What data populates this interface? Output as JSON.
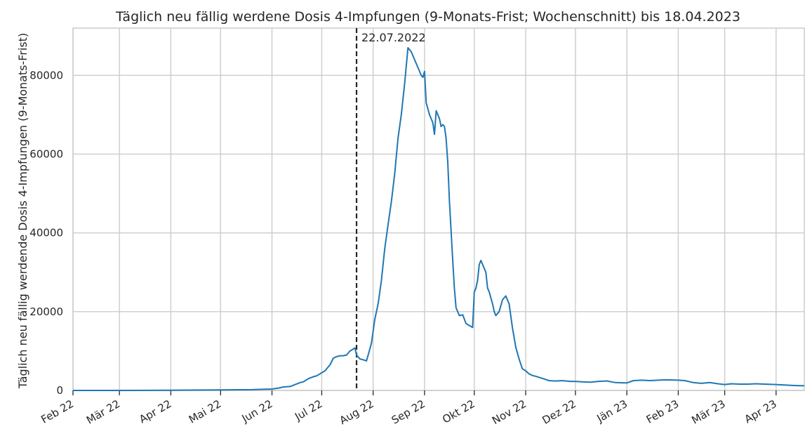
{
  "chart_data": {
    "type": "line",
    "title": "Täglich neu fällig werdene Dosis 4-Impfungen (9-Monats-Frist; Wochenschnitt) bis 18.04.2023",
    "xlabel": "",
    "ylabel": "Täglich neu fällig werdende Dosis 4-Impfungen (9-Monats-Frist)",
    "ylim": [
      0,
      92000
    ],
    "xlim": [
      "2022-02-01",
      "2023-04-18"
    ],
    "grid": true,
    "colors": {
      "line": "#1f77b4",
      "vline": "#262626",
      "grid": "#cccccc",
      "spine": "#cccccc"
    },
    "yticks": [
      {
        "value": 0,
        "label": "0"
      },
      {
        "value": 20000,
        "label": "20000"
      },
      {
        "value": 40000,
        "label": "40000"
      },
      {
        "value": 60000,
        "label": "60000"
      },
      {
        "value": 80000,
        "label": "80000"
      }
    ],
    "xticks": [
      {
        "date": "2022-02-01",
        "label": "Feb 22"
      },
      {
        "date": "2022-03-01",
        "label": "Mär 22"
      },
      {
        "date": "2022-04-01",
        "label": "Apr 22"
      },
      {
        "date": "2022-05-01",
        "label": "Mai 22"
      },
      {
        "date": "2022-06-01",
        "label": "Jun 22"
      },
      {
        "date": "2022-07-01",
        "label": "Jul 22"
      },
      {
        "date": "2022-08-01",
        "label": "Aug 22"
      },
      {
        "date": "2022-09-01",
        "label": "Sep 22"
      },
      {
        "date": "2022-10-01",
        "label": "Okt 22"
      },
      {
        "date": "2022-11-01",
        "label": "Nov 22"
      },
      {
        "date": "2022-12-01",
        "label": "Dez 22"
      },
      {
        "date": "2023-01-01",
        "label": "Jän 23"
      },
      {
        "date": "2023-02-01",
        "label": "Feb 23"
      },
      {
        "date": "2023-03-01",
        "label": "Mär 23"
      },
      {
        "date": "2023-04-01",
        "label": "Apr 23"
      }
    ],
    "annotation": {
      "date": "2022-07-22",
      "label": "22.07.2022"
    },
    "series": [
      {
        "x": [
          "2022-02-01",
          "2022-03-01",
          "2022-04-01",
          "2022-05-01",
          "2022-05-20",
          "2022-06-01",
          "2022-06-05",
          "2022-06-08",
          "2022-06-12",
          "2022-06-15",
          "2022-06-18",
          "2022-06-20",
          "2022-06-23",
          "2022-06-26",
          "2022-06-28",
          "2022-07-01",
          "2022-07-03",
          "2022-07-06",
          "2022-07-08",
          "2022-07-10",
          "2022-07-12",
          "2022-07-14",
          "2022-07-16",
          "2022-07-18",
          "2022-07-20",
          "2022-07-21",
          "2022-07-22",
          "2022-07-24",
          "2022-07-26",
          "2022-07-28",
          "2022-07-29",
          "2022-07-31",
          "2022-08-02",
          "2022-08-04",
          "2022-08-06",
          "2022-08-08",
          "2022-08-10",
          "2022-08-12",
          "2022-08-14",
          "2022-08-16",
          "2022-08-18",
          "2022-08-20",
          "2022-08-22",
          "2022-08-24",
          "2022-08-26",
          "2022-08-28",
          "2022-08-30",
          "2022-08-31",
          "2022-09-01",
          "2022-09-02",
          "2022-09-04",
          "2022-09-06",
          "2022-09-07",
          "2022-09-08",
          "2022-09-10",
          "2022-09-11",
          "2022-09-12",
          "2022-09-13",
          "2022-09-14",
          "2022-09-15",
          "2022-09-16",
          "2022-09-18",
          "2022-09-19",
          "2022-09-20",
          "2022-09-22",
          "2022-09-24",
          "2022-09-26",
          "2022-09-28",
          "2022-09-30",
          "2022-10-01",
          "2022-10-02",
          "2022-10-03",
          "2022-10-04",
          "2022-10-05",
          "2022-10-06",
          "2022-10-08",
          "2022-10-09",
          "2022-10-10",
          "2022-10-12",
          "2022-10-13",
          "2022-10-14",
          "2022-10-16",
          "2022-10-18",
          "2022-10-20",
          "2022-10-22",
          "2022-10-24",
          "2022-10-26",
          "2022-10-28",
          "2022-10-30",
          "2022-11-01",
          "2022-11-03",
          "2022-11-05",
          "2022-11-07",
          "2022-11-10",
          "2022-11-13",
          "2022-11-15",
          "2022-11-18",
          "2022-11-20",
          "2022-11-23",
          "2022-11-25",
          "2022-11-28",
          "2022-12-01",
          "2022-12-05",
          "2022-12-10",
          "2022-12-15",
          "2022-12-20",
          "2022-12-25",
          "2023-01-01",
          "2023-01-05",
          "2023-01-10",
          "2023-01-15",
          "2023-01-20",
          "2023-01-25",
          "2023-02-01",
          "2023-02-05",
          "2023-02-10",
          "2023-02-15",
          "2023-02-20",
          "2023-02-25",
          "2023-03-01",
          "2023-03-05",
          "2023-03-10",
          "2023-03-15",
          "2023-03-20",
          "2023-03-25",
          "2023-04-01",
          "2023-04-05",
          "2023-04-10",
          "2023-04-15",
          "2023-04-18"
        ],
        "y": [
          0,
          0,
          50,
          120,
          200,
          350,
          600,
          900,
          1000,
          1500,
          2000,
          2200,
          3000,
          3500,
          3700,
          4500,
          5000,
          6500,
          8200,
          8600,
          8800,
          8800,
          9000,
          10000,
          10500,
          10800,
          9000,
          8000,
          7800,
          7500,
          9000,
          12000,
          18000,
          22000,
          28000,
          36000,
          42000,
          48000,
          55000,
          64000,
          70000,
          78000,
          87000,
          86000,
          84000,
          82000,
          80000,
          79500,
          81000,
          73000,
          70000,
          68000,
          65000,
          71000,
          69000,
          67000,
          67500,
          67000,
          64000,
          58000,
          48000,
          33000,
          26000,
          21000,
          19000,
          19200,
          17000,
          16500,
          16000,
          25000,
          26000,
          28000,
          32000,
          33000,
          32000,
          30000,
          26000,
          25000,
          22000,
          20000,
          19000,
          20000,
          23000,
          24000,
          22000,
          16000,
          11000,
          8000,
          5500,
          5000,
          4200,
          3800,
          3600,
          3200,
          2800,
          2500,
          2400,
          2400,
          2500,
          2400,
          2300,
          2300,
          2200,
          2100,
          2300,
          2400,
          2000,
          1900,
          2500,
          2600,
          2500,
          2600,
          2700,
          2600,
          2500,
          2000,
          1800,
          2000,
          1700,
          1500,
          1700,
          1600,
          1600,
          1700,
          1600,
          1500,
          1400,
          1300,
          1200,
          1200
        ]
      }
    ]
  }
}
